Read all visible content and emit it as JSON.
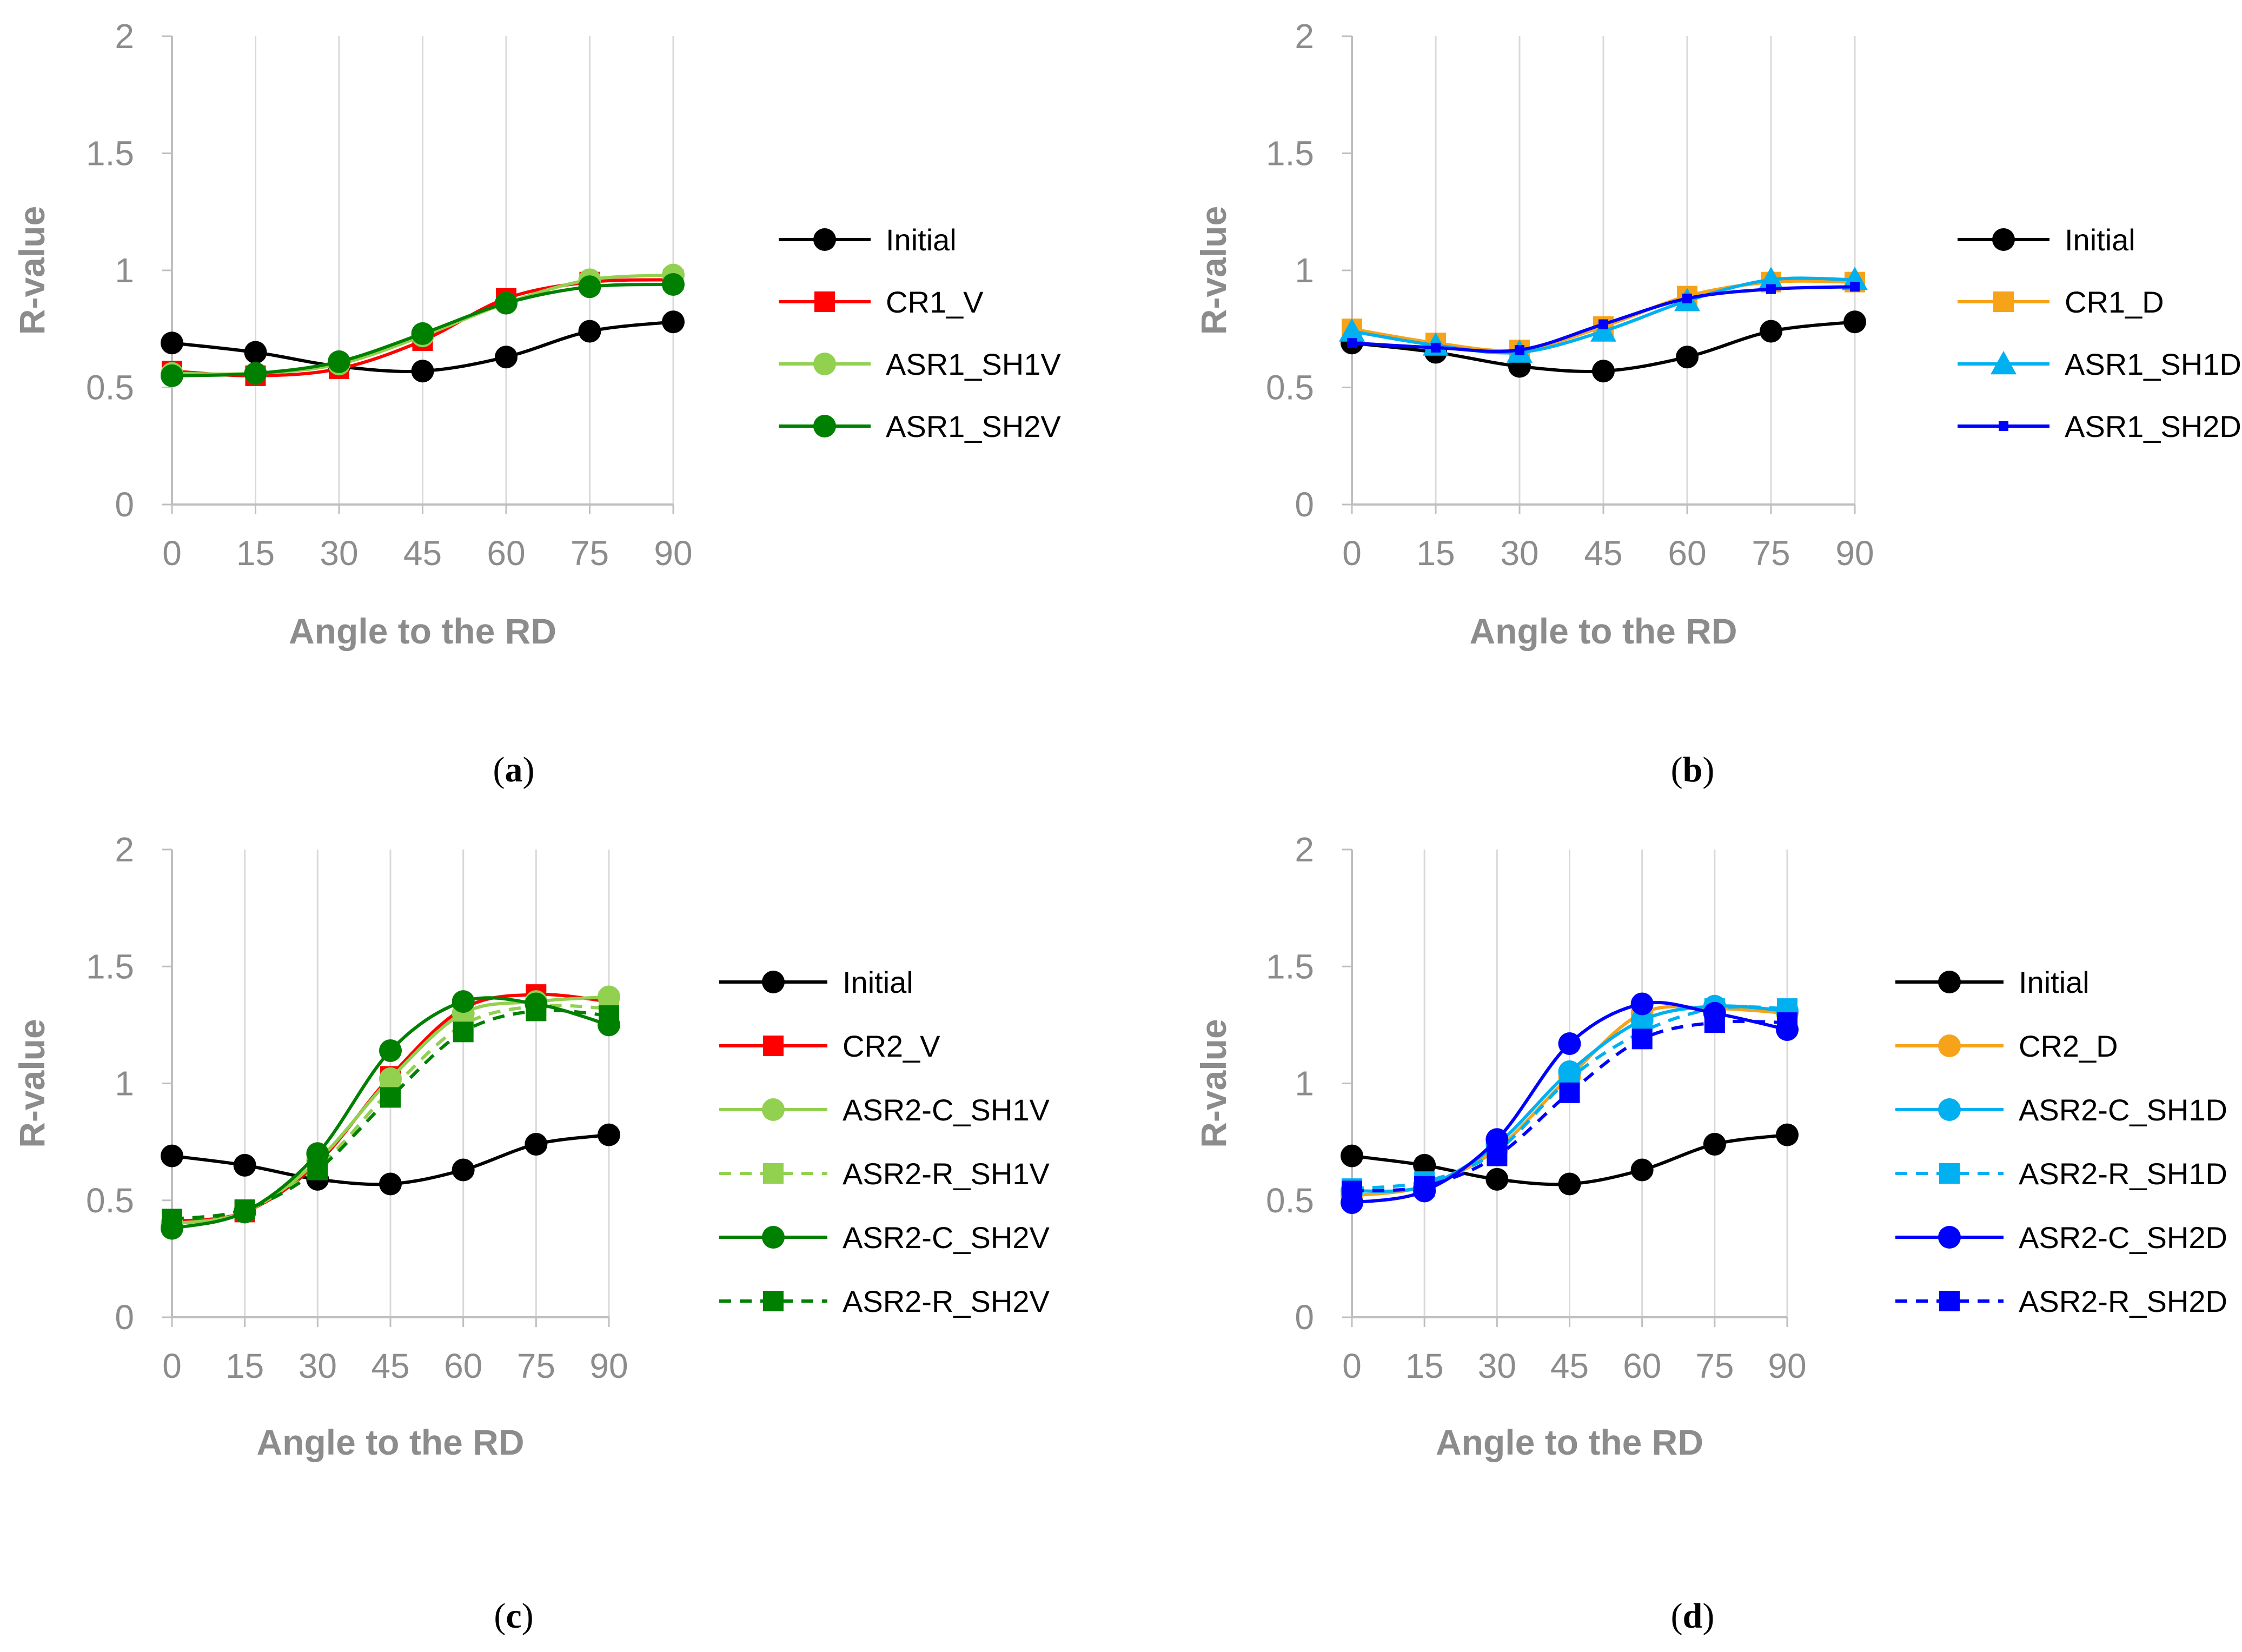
{
  "chart_data": [
    {
      "id": "a",
      "type": "line",
      "caption_letter": "a",
      "xlabel": "Angle to the RD",
      "ylabel": "R-value",
      "xticks": [
        "0",
        "15",
        "30",
        "45",
        "60",
        "75",
        "90"
      ],
      "yticks": [
        "0",
        "0.5",
        "1",
        "1.5",
        "2"
      ],
      "xlim": [
        0,
        90
      ],
      "ylim": [
        0,
        2
      ],
      "x": [
        0,
        15,
        30,
        45,
        60,
        75,
        90
      ],
      "series": [
        {
          "name": "Initial",
          "color": "#000000",
          "marker": "circle",
          "dash": false,
          "values": [
            0.69,
            0.65,
            0.59,
            0.57,
            0.63,
            0.74,
            0.78
          ]
        },
        {
          "name": "CR1_V",
          "color": "#ff0000",
          "marker": "square",
          "dash": false,
          "values": [
            0.57,
            0.55,
            0.58,
            0.7,
            0.88,
            0.95,
            0.96
          ]
        },
        {
          "name": "ASR1_SH1V",
          "color": "#92d050",
          "marker": "circle",
          "dash": false,
          "values": [
            0.56,
            0.56,
            0.6,
            0.72,
            0.86,
            0.96,
            0.98
          ]
        },
        {
          "name": "ASR1_SH2V",
          "color": "#008000",
          "marker": "circle",
          "dash": false,
          "values": [
            0.55,
            0.56,
            0.61,
            0.73,
            0.86,
            0.93,
            0.94
          ]
        }
      ]
    },
    {
      "id": "b",
      "type": "line",
      "caption_letter": "b",
      "xlabel": "Angle to the RD",
      "ylabel": "R-value",
      "xticks": [
        "0",
        "15",
        "30",
        "45",
        "60",
        "75",
        "90"
      ],
      "yticks": [
        "0",
        "0.5",
        "1",
        "1.5",
        "2"
      ],
      "xlim": [
        0,
        90
      ],
      "ylim": [
        0,
        2
      ],
      "x": [
        0,
        15,
        30,
        45,
        60,
        75,
        90
      ],
      "series": [
        {
          "name": "Initial",
          "color": "#000000",
          "marker": "circle",
          "dash": false,
          "values": [
            0.69,
            0.65,
            0.59,
            0.57,
            0.63,
            0.74,
            0.78
          ]
        },
        {
          "name": "CR1_D",
          "color": "#f7a319",
          "marker": "square",
          "dash": false,
          "values": [
            0.75,
            0.69,
            0.66,
            0.76,
            0.89,
            0.95,
            0.95
          ]
        },
        {
          "name": "ASR1_SH1D",
          "color": "#00b0f0",
          "marker": "triangle",
          "dash": false,
          "values": [
            0.74,
            0.68,
            0.65,
            0.74,
            0.87,
            0.96,
            0.96
          ]
        },
        {
          "name": "ASR1_SH2D",
          "color": "#0000ff",
          "marker": "smallsquare",
          "dash": false,
          "values": [
            0.69,
            0.67,
            0.66,
            0.77,
            0.88,
            0.92,
            0.93
          ]
        }
      ]
    },
    {
      "id": "c",
      "type": "line",
      "caption_letter": "c",
      "xlabel": "Angle to the RD",
      "ylabel": "R-value",
      "xticks": [
        "0",
        "15",
        "30",
        "45",
        "60",
        "75",
        "90"
      ],
      "yticks": [
        "0",
        "0.5",
        "1",
        "1.5",
        "2"
      ],
      "xlim": [
        0,
        90
      ],
      "ylim": [
        0,
        2
      ],
      "x": [
        0,
        15,
        30,
        45,
        60,
        75,
        90
      ],
      "series": [
        {
          "name": "Initial",
          "color": "#000000",
          "marker": "circle",
          "dash": false,
          "values": [
            0.69,
            0.65,
            0.59,
            0.57,
            0.63,
            0.74,
            0.78
          ]
        },
        {
          "name": "CR2_V",
          "color": "#ff0000",
          "marker": "square",
          "dash": false,
          "values": [
            0.41,
            0.45,
            0.66,
            1.03,
            1.32,
            1.38,
            1.35
          ]
        },
        {
          "name": "ASR2-C_SH1V",
          "color": "#92d050",
          "marker": "circle",
          "dash": false,
          "values": [
            0.4,
            0.45,
            0.67,
            1.02,
            1.3,
            1.35,
            1.37
          ]
        },
        {
          "name": "ASR2-R_SH1V",
          "color": "#92d050",
          "marker": "square",
          "dash": true,
          "values": [
            0.42,
            0.46,
            0.64,
            0.97,
            1.25,
            1.33,
            1.32
          ]
        },
        {
          "name": "ASR2-C_SH2V",
          "color": "#008000",
          "marker": "circle",
          "dash": false,
          "values": [
            0.38,
            0.45,
            0.7,
            1.14,
            1.35,
            1.34,
            1.25
          ]
        },
        {
          "name": "ASR2-R_SH2V",
          "color": "#008000",
          "marker": "square",
          "dash": true,
          "values": [
            0.42,
            0.46,
            0.63,
            0.94,
            1.22,
            1.31,
            1.29
          ]
        }
      ]
    },
    {
      "id": "d",
      "type": "line",
      "caption_letter": "d",
      "xlabel": "Angle to the RD",
      "ylabel": "R-value",
      "xticks": [
        "0",
        "15",
        "30",
        "45",
        "60",
        "75",
        "90"
      ],
      "yticks": [
        "0",
        "0.5",
        "1",
        "1.5",
        "2"
      ],
      "xlim": [
        0,
        90
      ],
      "ylim": [
        0,
        2
      ],
      "x": [
        0,
        15,
        30,
        45,
        60,
        75,
        90
      ],
      "series": [
        {
          "name": "Initial",
          "color": "#000000",
          "marker": "circle",
          "dash": false,
          "values": [
            0.69,
            0.65,
            0.59,
            0.57,
            0.63,
            0.74,
            0.78
          ]
        },
        {
          "name": "CR2_D",
          "color": "#f7a319",
          "marker": "circle",
          "dash": false,
          "values": [
            0.52,
            0.56,
            0.72,
            1.03,
            1.3,
            1.32,
            1.3
          ]
        },
        {
          "name": "ASR2-C_SH1D",
          "color": "#00b0f0",
          "marker": "circle",
          "dash": false,
          "values": [
            0.54,
            0.56,
            0.74,
            1.05,
            1.27,
            1.33,
            1.31
          ]
        },
        {
          "name": "ASR2-R_SH1D",
          "color": "#00b0f0",
          "marker": "square",
          "dash": true,
          "values": [
            0.55,
            0.58,
            0.71,
            1.02,
            1.22,
            1.32,
            1.32
          ]
        },
        {
          "name": "ASR2-C_SH2D",
          "color": "#0000ff",
          "marker": "circle",
          "dash": false,
          "values": [
            0.49,
            0.54,
            0.76,
            1.17,
            1.34,
            1.3,
            1.23
          ]
        },
        {
          "name": "ASR2-R_SH2D",
          "color": "#0000ff",
          "marker": "square",
          "dash": true,
          "values": [
            0.54,
            0.56,
            0.69,
            0.96,
            1.19,
            1.26,
            1.26
          ]
        }
      ]
    }
  ]
}
